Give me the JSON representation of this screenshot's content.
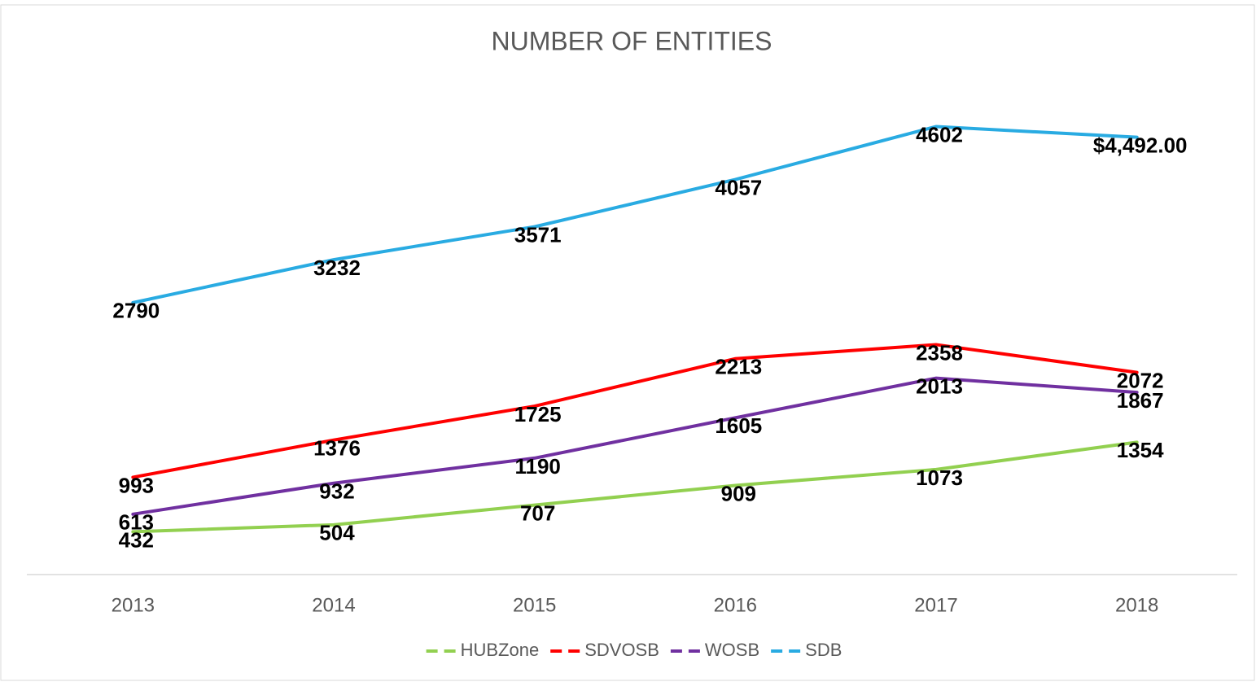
{
  "chart_data": {
    "type": "line",
    "title": "NUMBER OF ENTITIES",
    "categories": [
      "2013",
      "2014",
      "2015",
      "2016",
      "2017",
      "2018"
    ],
    "series": [
      {
        "name": "HUBZone",
        "color": "#92d050",
        "values": [
          432,
          504,
          707,
          909,
          1073,
          1354
        ]
      },
      {
        "name": "SDVOSB",
        "color": "#ff0000",
        "values": [
          993,
          1376,
          1725,
          2213,
          2358,
          2072
        ]
      },
      {
        "name": "WOSB",
        "color": "#7030a0",
        "values": [
          613,
          932,
          1190,
          1605,
          2013,
          1867
        ]
      },
      {
        "name": "SDB",
        "color": "#29abe2",
        "values": [
          2790,
          3232,
          3571,
          4057,
          4602,
          4492
        ],
        "value_labels": [
          "2790",
          "3232",
          "3571",
          "4057",
          "4602",
          "$4,492.00"
        ]
      }
    ],
    "ylim": [
      0,
      5000
    ],
    "legend": "bottom"
  }
}
